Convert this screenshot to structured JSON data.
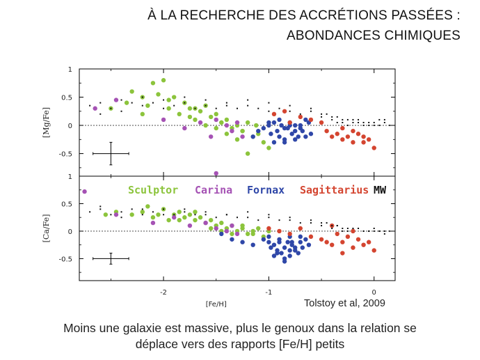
{
  "slide": {
    "title_line1": "À LA RECHERCHE DES ACCRÉTIONS PASSÉES :",
    "title_line2": "ABONDANCES CHIMIQUES",
    "citation": "Tolstoy et al, 2009",
    "caption_line1": "Moins une galaxie est massive, plus le genoux dans la relation se",
    "caption_line2": "déplace vers des rapports [Fe/H] petits"
  },
  "chart_data": {
    "type": "scatter",
    "xlabel": "[Fe/H]",
    "xlim": [
      -2.8,
      0.2
    ],
    "x_ticks": [
      "-2",
      "-1",
      "0"
    ],
    "colors": {
      "Sculptor": "#8cc43c",
      "Carina": "#a552b4",
      "Fornax": "#2f47a8",
      "Sagittarius": "#d44530",
      "MW": "#111111"
    },
    "legend": [
      {
        "name": "Sculptor",
        "color": "#8cc43c"
      },
      {
        "name": "Carina",
        "color": "#a552b4"
      },
      {
        "name": "Fornax",
        "color": "#2f47a8"
      },
      {
        "name": "Sagittarius",
        "color": "#d44530"
      },
      {
        "name": "MW",
        "color": "#111111"
      }
    ],
    "panels": [
      {
        "ylabel": "[Mg/Fe]",
        "ylim": [
          -0.9,
          1.0
        ],
        "y_ticks": [
          "1",
          "0.5",
          "0",
          "-0.5"
        ],
        "errorbar": {
          "x": -2.5,
          "y": -0.5,
          "xerr": 0.17,
          "yerr": 0.2
        },
        "series": [
          {
            "name": "Sculptor",
            "color": "#8cc43c",
            "x": [
              -2.5,
              -2.35,
              -2.3,
              -2.2,
              -2.15,
              -2.1,
              -2.05,
              -2.0,
              -1.95,
              -1.9,
              -1.85,
              -1.8,
              -1.75,
              -1.7,
              -1.65,
              -1.6,
              -1.55,
              -1.5,
              -1.45,
              -1.4,
              -1.35,
              -1.3,
              -1.25,
              -1.2,
              -1.15,
              -1.1,
              -1.05,
              -1.0,
              -1.95,
              -1.75,
              -1.6,
              -1.5,
              -1.4,
              -1.3,
              -1.2,
              -2.2,
              -1.7,
              -1.45,
              -1.25,
              -1.12
            ],
            "y": [
              0.3,
              0.4,
              0.6,
              0.5,
              0.35,
              0.75,
              0.55,
              0.8,
              0.3,
              0.5,
              0.2,
              0.4,
              0.3,
              0.1,
              0.25,
              0.35,
              0.15,
              0.2,
              0.05,
              0.1,
              -0.05,
              0.0,
              -0.1,
              0.05,
              -0.2,
              -0.15,
              -0.3,
              -0.4,
              0.45,
              0.15,
              0.0,
              -0.05,
              -0.15,
              -0.25,
              -0.5,
              0.2,
              0.3,
              0.05,
              -0.1,
              0.0
            ]
          },
          {
            "name": "Carina",
            "color": "#a552b4",
            "x": [
              -2.65,
              -2.45,
              -2.0,
              -1.8,
              -1.65,
              -1.55,
              -1.5,
              -1.4,
              -1.35,
              -1.3,
              -1.25,
              -1.5
            ],
            "y": [
              0.3,
              0.45,
              0.1,
              -0.05,
              0.05,
              -0.2,
              -0.85,
              0.0,
              -0.1,
              0.05,
              -0.2,
              0.1
            ]
          },
          {
            "name": "Fornax",
            "color": "#2f47a8",
            "x": [
              -1.1,
              -1.05,
              -1.0,
              -0.98,
              -0.95,
              -0.92,
              -0.9,
              -0.88,
              -0.85,
              -0.82,
              -0.8,
              -0.78,
              -0.75,
              -0.72,
              -0.7,
              -0.68,
              -0.65,
              -0.62,
              -0.6,
              -0.95,
              -0.85,
              -0.75,
              -1.0,
              -0.9,
              -0.8,
              -0.7,
              -0.65,
              -1.15,
              -0.85,
              -0.75
            ],
            "y": [
              -0.1,
              -0.05,
              0.0,
              -0.15,
              0.05,
              -0.1,
              -0.2,
              0.0,
              -0.25,
              -0.05,
              0.0,
              -0.15,
              -0.1,
              -0.2,
              0.0,
              -0.1,
              -0.2,
              0.05,
              -0.15,
              -0.3,
              -0.3,
              -0.25,
              0.05,
              0.1,
              0.05,
              -0.05,
              0.1,
              -0.2,
              -0.05,
              0.0
            ]
          },
          {
            "name": "Sagittarius",
            "color": "#d44530",
            "x": [
              -0.95,
              -0.85,
              -0.8,
              -0.7,
              -0.6,
              -0.5,
              -0.45,
              -0.4,
              -0.35,
              -0.3,
              -0.25,
              -0.2,
              -0.15,
              -0.1,
              -0.05,
              0.0,
              -0.3,
              -0.2,
              -0.1
            ],
            "y": [
              0.2,
              0.25,
              0.05,
              0.15,
              0.1,
              0.05,
              -0.1,
              -0.2,
              -0.15,
              -0.25,
              -0.2,
              -0.3,
              -0.15,
              -0.3,
              -0.25,
              -0.4,
              -0.05,
              -0.1,
              -0.2
            ]
          },
          {
            "name": "MW",
            "color": "#111111",
            "x": [
              -2.7,
              -2.6,
              -2.5,
              -2.4,
              -2.3,
              -2.2,
              -2.1,
              -2.0,
              -1.9,
              -1.8,
              -1.7,
              -1.6,
              -1.5,
              -1.4,
              -1.3,
              -1.2,
              -1.1,
              -1.0,
              -0.9,
              -0.8,
              -0.7,
              -0.6,
              -0.5,
              -0.45,
              -0.4,
              -0.35,
              -0.3,
              -0.25,
              -0.2,
              -0.15,
              -0.1,
              -0.05,
              0.0,
              0.05,
              0.1,
              0.15,
              -0.4,
              -0.3,
              -0.2,
              -0.1,
              0.0,
              0.1,
              -0.35,
              -0.25,
              -0.15,
              -0.05,
              0.05,
              -0.6,
              -0.5,
              -0.8,
              -1.0,
              -1.2,
              -1.4,
              -1.6,
              -1.8,
              -2.0,
              -2.2,
              -2.4,
              -2.6
            ],
            "y": [
              0.35,
              0.4,
              0.3,
              0.45,
              0.4,
              0.35,
              0.4,
              0.45,
              0.35,
              0.4,
              0.3,
              0.35,
              0.3,
              0.35,
              0.3,
              0.35,
              0.3,
              0.25,
              0.3,
              0.25,
              0.2,
              0.25,
              0.15,
              0.2,
              0.1,
              0.15,
              0.05,
              0.1,
              0.05,
              0.1,
              0.0,
              0.05,
              0.05,
              0.0,
              0.05,
              0.0,
              0.15,
              0.1,
              0.1,
              0.05,
              0.0,
              0.1,
              0.05,
              0.0,
              0.05,
              0.0,
              0.1,
              0.3,
              0.2,
              0.35,
              0.4,
              0.45,
              0.4,
              0.45,
              0.5,
              0.3,
              0.5,
              0.25,
              0.2
            ]
          }
        ]
      },
      {
        "ylabel": "[Ca/Fe]",
        "ylim": [
          -0.9,
          1.0
        ],
        "y_ticks": [
          "1",
          "0.5",
          "0",
          "-0.5"
        ],
        "errorbar": {
          "x": -2.5,
          "y": -0.5,
          "xerr": 0.17,
          "yerr": 0.1
        },
        "series": [
          {
            "name": "Sculptor",
            "color": "#8cc43c",
            "x": [
              -2.55,
              -2.45,
              -2.3,
              -2.2,
              -2.1,
              -2.05,
              -2.0,
              -1.95,
              -1.9,
              -1.85,
              -1.8,
              -1.75,
              -1.7,
              -1.65,
              -1.6,
              -1.55,
              -1.5,
              -1.45,
              -1.4,
              -1.35,
              -1.3,
              -1.25,
              -1.2,
              -1.15,
              -1.1,
              -1.05,
              -1.0,
              -2.15,
              -1.85,
              -1.7,
              -1.55,
              -1.45,
              -1.35,
              -1.25,
              -1.15
            ],
            "y": [
              0.3,
              0.35,
              0.3,
              0.35,
              0.25,
              0.3,
              0.4,
              0.2,
              0.3,
              0.35,
              0.25,
              0.3,
              0.2,
              0.25,
              0.15,
              0.2,
              0.1,
              0.15,
              0.05,
              0.1,
              0.0,
              0.05,
              -0.05,
              0.0,
              0.05,
              -0.1,
              0.0,
              0.45,
              0.2,
              0.35,
              0.05,
              0.0,
              -0.05,
              0.1,
              -0.05
            ]
          },
          {
            "name": "Carina",
            "color": "#a552b4",
            "x": [
              -2.75,
              -2.45,
              -2.1,
              -1.9,
              -1.75,
              -1.6,
              -1.5,
              -1.4,
              -1.35,
              -1.3
            ],
            "y": [
              0.72,
              0.3,
              0.15,
              0.25,
              0.1,
              0.15,
              0.05,
              0.0,
              0.1,
              -0.05
            ]
          },
          {
            "name": "Fornax",
            "color": "#2f47a8",
            "x": [
              -1.45,
              -1.35,
              -1.25,
              -1.15,
              -1.05,
              -1.0,
              -0.98,
              -0.95,
              -0.92,
              -0.9,
              -0.88,
              -0.85,
              -0.82,
              -0.8,
              -0.78,
              -0.75,
              -0.72,
              -0.7,
              -0.68,
              -0.65,
              -0.62,
              -0.95,
              -0.85,
              -0.75,
              -1.0,
              -0.9,
              -0.8,
              -0.7,
              -0.85,
              -0.8,
              -0.92,
              -0.78
            ],
            "y": [
              -0.05,
              -0.15,
              -0.2,
              -0.25,
              -0.15,
              -0.2,
              -0.3,
              -0.25,
              -0.35,
              -0.2,
              -0.4,
              -0.3,
              -0.2,
              -0.35,
              -0.25,
              -0.3,
              -0.4,
              -0.2,
              -0.3,
              -0.15,
              -0.25,
              -0.45,
              -0.5,
              -0.35,
              -0.1,
              -0.15,
              -0.1,
              -0.1,
              -0.55,
              -0.45,
              -0.4,
              -0.2
            ]
          },
          {
            "name": "Sagittarius",
            "color": "#d44530",
            "x": [
              -1.0,
              -0.9,
              -0.8,
              -0.7,
              -0.6,
              -0.5,
              -0.45,
              -0.4,
              -0.35,
              -0.3,
              -0.25,
              -0.2,
              -0.15,
              -0.1,
              -0.05,
              0.0,
              -0.3,
              -0.2,
              -0.4
            ],
            "y": [
              0.05,
              0.0,
              -0.05,
              0.05,
              -0.1,
              -0.15,
              -0.2,
              -0.25,
              -0.05,
              -0.2,
              -0.1,
              -0.3,
              -0.15,
              -0.25,
              -0.2,
              -0.35,
              -0.4,
              0.0,
              0.1
            ]
          },
          {
            "name": "MW",
            "color": "#111111",
            "x": [
              -2.7,
              -2.6,
              -2.5,
              -2.4,
              -2.3,
              -2.2,
              -2.1,
              -2.0,
              -1.9,
              -1.8,
              -1.7,
              -1.6,
              -1.5,
              -1.4,
              -1.3,
              -1.2,
              -1.1,
              -1.0,
              -0.9,
              -0.8,
              -0.7,
              -0.6,
              -0.5,
              -0.45,
              -0.4,
              -0.35,
              -0.3,
              -0.25,
              -0.2,
              -0.15,
              -0.1,
              -0.05,
              0.0,
              0.05,
              0.1,
              0.15,
              -0.4,
              -0.3,
              -0.2,
              -0.1,
              0.0,
              0.1,
              -0.35,
              -0.25,
              -0.15,
              -0.05,
              0.05,
              -0.6,
              -0.5,
              -0.8,
              -1.0,
              -1.2,
              -1.4,
              -1.6,
              -1.8,
              -2.0,
              -2.2,
              -2.4,
              -2.6
            ],
            "y": [
              0.35,
              0.4,
              0.3,
              0.35,
              0.4,
              0.3,
              0.35,
              0.4,
              0.3,
              0.35,
              0.3,
              0.3,
              0.25,
              0.3,
              0.25,
              0.25,
              0.2,
              0.25,
              0.2,
              0.2,
              0.15,
              0.15,
              0.1,
              0.15,
              0.1,
              0.1,
              0.05,
              0.05,
              0.05,
              0.05,
              0.0,
              0.0,
              0.0,
              0.0,
              -0.05,
              0.0,
              0.05,
              0.0,
              0.05,
              0.0,
              0.05,
              0.0,
              0.1,
              0.0,
              0.05,
              0.0,
              0.0,
              0.2,
              0.15,
              0.25,
              0.3,
              0.35,
              0.3,
              0.35,
              0.4,
              0.3,
              0.4,
              0.25,
              0.45
            ]
          }
        ]
      }
    ]
  }
}
